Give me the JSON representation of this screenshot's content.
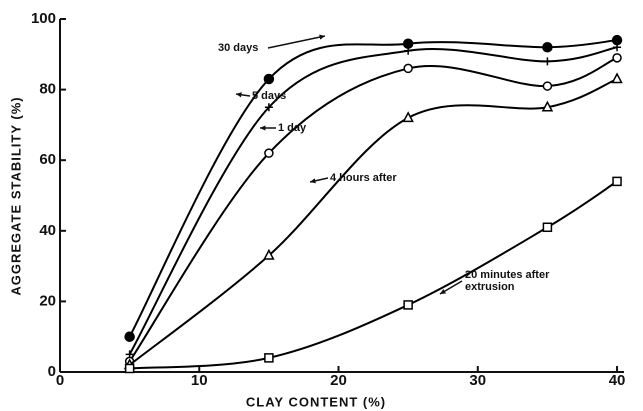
{
  "chart_data": {
    "type": "scatter",
    "xlabel": "CLAY CONTENT (%)",
    "ylabel": "AGGREGATE STABILITY (%)",
    "x": [
      5,
      15,
      25,
      35,
      40
    ],
    "series": [
      {
        "name": "30 days",
        "color": "#000000",
        "marker": "filled-circle",
        "values": [
          10,
          83,
          93,
          92,
          94
        ]
      },
      {
        "name": "5 days",
        "color": "#000000",
        "marker": "plus",
        "values": [
          5,
          75,
          91,
          88,
          92
        ]
      },
      {
        "name": "1 day",
        "color": "#000000",
        "marker": "open-circle",
        "values": [
          3,
          62,
          86,
          81,
          89
        ]
      },
      {
        "name": "4 hours after",
        "color": "#000000",
        "marker": "triangle",
        "values": [
          2,
          33,
          72,
          75,
          83
        ]
      },
      {
        "name": "20 minutes after extrusion",
        "color": "#000000",
        "marker": "square",
        "values": [
          1,
          4,
          19,
          41,
          54
        ]
      }
    ],
    "xlim": [
      0,
      40.5
    ],
    "ylim": [
      0,
      100
    ],
    "xticks": [
      0,
      10,
      20,
      30,
      40
    ],
    "yticks": [
      0,
      20,
      40,
      60,
      80,
      100
    ]
  }
}
